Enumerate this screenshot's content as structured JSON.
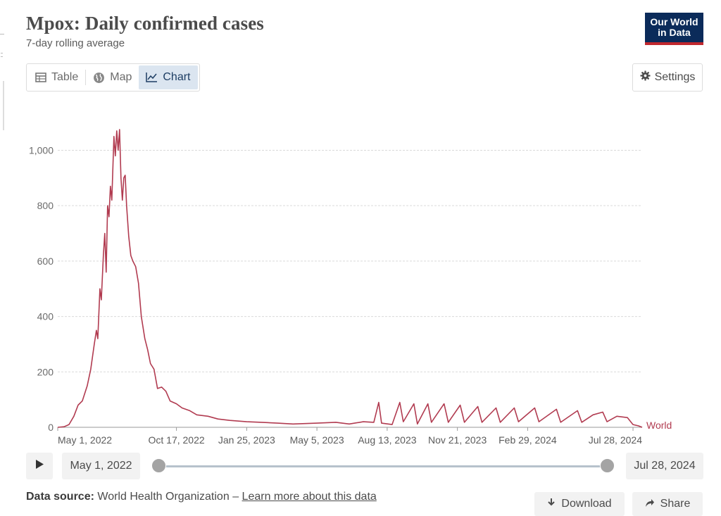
{
  "header": {
    "title": "Mpox: Daily confirmed cases",
    "subtitle": "7-day rolling average",
    "logo_line1": "Our World",
    "logo_line2": "in Data"
  },
  "tabs": [
    {
      "label": "Table",
      "icon": "table-icon",
      "active": false
    },
    {
      "label": "Map",
      "icon": "globe-icon",
      "active": false
    },
    {
      "label": "Chart",
      "icon": "line-chart-icon",
      "active": true
    }
  ],
  "settings_label": "Settings",
  "colors": {
    "series": "#b13b50",
    "grid": "#dadada",
    "logo_bg": "#0b2b5a",
    "logo_accent": "#c0282e",
    "active_tab": "#dbe5f0"
  },
  "chart_data": {
    "type": "line",
    "title": "Mpox: Daily confirmed cases",
    "subtitle": "7-day rolling average",
    "x_ticks": [
      "May 1, 2022",
      "Oct 17, 2022",
      "Jan 25, 2023",
      "May 5, 2023",
      "Aug 13, 2023",
      "Nov 21, 2023",
      "Feb 29, 2024",
      "Jul 28, 2024"
    ],
    "y_ticks": [
      0,
      200,
      400,
      600,
      800,
      1000
    ],
    "y_tick_labels": [
      "0",
      "200",
      "400",
      "600",
      "800",
      "1,000"
    ],
    "ylim": [
      0,
      1080
    ],
    "xlim": [
      "2022-05-01",
      "2024-08-10"
    ],
    "grid": true,
    "legend": "series label at line end",
    "series": [
      {
        "name": "World",
        "points": [
          [
            "2022-05-01",
            0
          ],
          [
            "2022-05-10",
            2
          ],
          [
            "2022-05-17",
            10
          ],
          [
            "2022-05-24",
            40
          ],
          [
            "2022-05-30",
            80
          ],
          [
            "2022-06-05",
            95
          ],
          [
            "2022-06-12",
            150
          ],
          [
            "2022-06-17",
            210
          ],
          [
            "2022-06-22",
            300
          ],
          [
            "2022-06-25",
            350
          ],
          [
            "2022-06-27",
            320
          ],
          [
            "2022-06-30",
            500
          ],
          [
            "2022-07-02",
            460
          ],
          [
            "2022-07-05",
            620
          ],
          [
            "2022-07-07",
            700
          ],
          [
            "2022-07-09",
            560
          ],
          [
            "2022-07-11",
            800
          ],
          [
            "2022-07-13",
            760
          ],
          [
            "2022-07-15",
            870
          ],
          [
            "2022-07-17",
            820
          ],
          [
            "2022-07-20",
            1050
          ],
          [
            "2022-07-22",
            980
          ],
          [
            "2022-07-24",
            1070
          ],
          [
            "2022-07-26",
            1000
          ],
          [
            "2022-07-28",
            1075
          ],
          [
            "2022-07-30",
            900
          ],
          [
            "2022-08-01",
            820
          ],
          [
            "2022-08-03",
            900
          ],
          [
            "2022-08-05",
            910
          ],
          [
            "2022-08-07",
            800
          ],
          [
            "2022-08-10",
            690
          ],
          [
            "2022-08-13",
            620
          ],
          [
            "2022-08-16",
            600
          ],
          [
            "2022-08-20",
            580
          ],
          [
            "2022-08-24",
            520
          ],
          [
            "2022-08-28",
            400
          ],
          [
            "2022-09-02",
            320
          ],
          [
            "2022-09-06",
            280
          ],
          [
            "2022-09-10",
            230
          ],
          [
            "2022-09-15",
            210
          ],
          [
            "2022-09-20",
            140
          ],
          [
            "2022-09-26",
            145
          ],
          [
            "2022-10-02",
            130
          ],
          [
            "2022-10-08",
            95
          ],
          [
            "2022-10-17",
            85
          ],
          [
            "2022-10-25",
            70
          ],
          [
            "2022-11-05",
            60
          ],
          [
            "2022-11-15",
            45
          ],
          [
            "2022-12-01",
            40
          ],
          [
            "2022-12-15",
            30
          ],
          [
            "2023-01-01",
            25
          ],
          [
            "2023-01-25",
            20
          ],
          [
            "2023-02-15",
            18
          ],
          [
            "2023-03-10",
            15
          ],
          [
            "2023-04-01",
            12
          ],
          [
            "2023-05-05",
            15
          ],
          [
            "2023-06-01",
            18
          ],
          [
            "2023-06-20",
            12
          ],
          [
            "2023-07-10",
            20
          ],
          [
            "2023-07-25",
            18
          ],
          [
            "2023-08-01",
            90
          ],
          [
            "2023-08-05",
            15
          ],
          [
            "2023-08-20",
            10
          ],
          [
            "2023-08-31",
            90
          ],
          [
            "2023-09-05",
            20
          ],
          [
            "2023-09-20",
            85
          ],
          [
            "2023-09-25",
            12
          ],
          [
            "2023-10-10",
            85
          ],
          [
            "2023-10-15",
            18
          ],
          [
            "2023-11-02",
            85
          ],
          [
            "2023-11-08",
            18
          ],
          [
            "2023-11-25",
            80
          ],
          [
            "2023-12-01",
            18
          ],
          [
            "2023-12-20",
            75
          ],
          [
            "2023-12-26",
            18
          ],
          [
            "2024-01-15",
            70
          ],
          [
            "2024-01-21",
            18
          ],
          [
            "2024-02-10",
            70
          ],
          [
            "2024-02-16",
            20
          ],
          [
            "2024-03-10",
            70
          ],
          [
            "2024-03-16",
            20
          ],
          [
            "2024-04-10",
            65
          ],
          [
            "2024-04-16",
            18
          ],
          [
            "2024-05-10",
            60
          ],
          [
            "2024-05-16",
            18
          ],
          [
            "2024-06-01",
            45
          ],
          [
            "2024-06-15",
            55
          ],
          [
            "2024-06-21",
            20
          ],
          [
            "2024-07-05",
            40
          ],
          [
            "2024-07-20",
            35
          ],
          [
            "2024-07-28",
            10
          ],
          [
            "2024-08-05",
            5
          ],
          [
            "2024-08-10",
            0
          ]
        ]
      }
    ]
  },
  "timeline": {
    "start_label": "May 1, 2022",
    "end_label": "Jul 28, 2024",
    "play_label": "Play"
  },
  "footer": {
    "source_label": "Data source:",
    "source_value": "World Health Organization",
    "separator": "–",
    "learn_more": "Learn more about this data"
  },
  "buttons": {
    "download": "Download",
    "share": "Share"
  }
}
